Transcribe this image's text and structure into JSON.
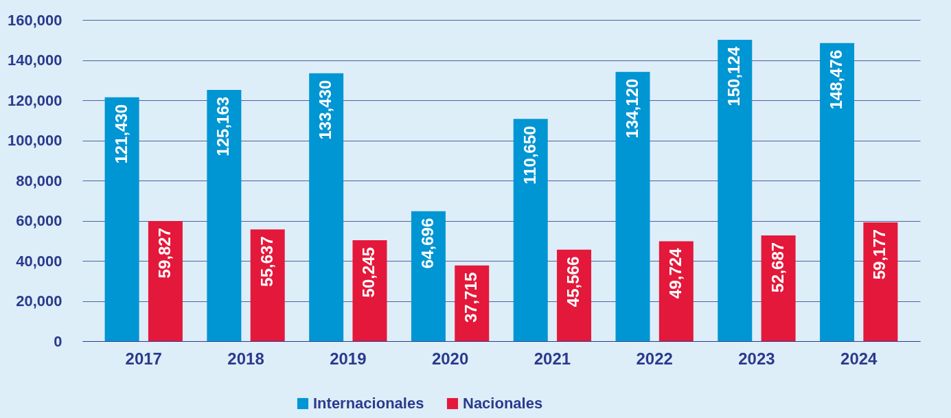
{
  "chart_data": {
    "type": "bar",
    "categories": [
      "2017",
      "2018",
      "2019",
      "2020",
      "2021",
      "2022",
      "2023",
      "2024"
    ],
    "series": [
      {
        "name": "Internacionales",
        "color": "#0095d3",
        "values": [
          121430,
          125163,
          133430,
          64696,
          110650,
          134120,
          150124,
          148476
        ],
        "value_labels": [
          "121,430",
          "125,163",
          "133,430",
          "64,696",
          "110,650",
          "134,120",
          "150,124",
          "148,476"
        ]
      },
      {
        "name": "Nacionales",
        "color": "#e4183a",
        "values": [
          59827,
          55637,
          50245,
          37715,
          45566,
          49724,
          52687,
          59177
        ],
        "value_labels": [
          "59,827",
          "55,637",
          "50,245",
          "37,715",
          "45,566",
          "49,724",
          "52,687",
          "59,177"
        ]
      }
    ],
    "ylim": [
      0,
      160000
    ],
    "yticks": [
      0,
      {
        "value": 20000,
        "label": "20,000"
      },
      {
        "value": 40000,
        "label": "40,000"
      },
      {
        "value": 60000,
        "label": "60,000"
      },
      {
        "value": 80000,
        "label": "80,000"
      },
      {
        "value": 100000,
        "label": "100,000"
      },
      {
        "value": 120000,
        "label": "120,000"
      },
      {
        "value": 140000,
        "label": "140,000"
      },
      {
        "value": 160000,
        "label": "160,000"
      }
    ],
    "grid": "y",
    "legend": "bottom"
  }
}
